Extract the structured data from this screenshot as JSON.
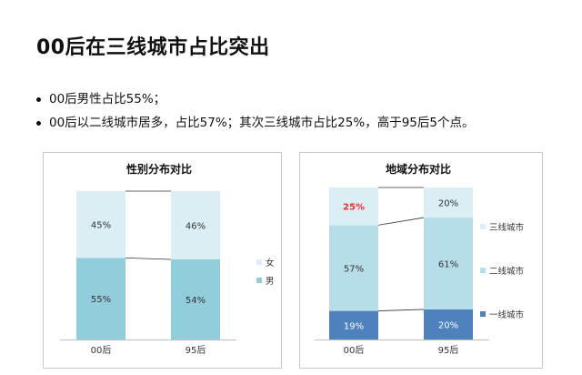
{
  "page": {
    "title": "00后在三线城市占比突出",
    "bullets": [
      "00后男性占比55%；",
      "00后以二线城市居多，占比57%；其次三线城市占比25%，高于95后5个点。"
    ]
  },
  "chart_data": [
    {
      "type": "bar",
      "stacked": true,
      "percent": true,
      "title": "性别分布对比",
      "categories": [
        "00后",
        "95后"
      ],
      "series": [
        {
          "name": "男",
          "values": [
            55,
            54
          ],
          "labels": [
            "55%",
            "54%"
          ],
          "color": "#92cddc",
          "label_color": "#333333"
        },
        {
          "name": "女",
          "values": [
            45,
            46
          ],
          "labels": [
            "45%",
            "46%"
          ],
          "color": "#daeef3",
          "label_color": "#333333"
        }
      ],
      "legend": "right",
      "legend_order": [
        "女",
        "男"
      ],
      "ylim": [
        0,
        100
      ],
      "series_lines": true
    },
    {
      "type": "bar",
      "stacked": true,
      "percent": true,
      "title": "地域分布对比",
      "categories": [
        "00后",
        "95后"
      ],
      "series": [
        {
          "name": "一线城市",
          "values": [
            19,
            20
          ],
          "labels": [
            "19%",
            "20%"
          ],
          "color": "#4f81bd",
          "label_color": "#ffffff"
        },
        {
          "name": "二线城市",
          "values": [
            57,
            61
          ],
          "labels": [
            "57%",
            "61%"
          ],
          "color": "#b7dde8",
          "label_color": "#333333"
        },
        {
          "name": "三线城市",
          "values": [
            25,
            20
          ],
          "labels": [
            "25%",
            "20%"
          ],
          "color": "#daeef3",
          "label_color": "#333333",
          "highlight": {
            "index": 0,
            "color": "#e8312f"
          }
        }
      ],
      "legend": "right",
      "legend_order": [
        "三线城市",
        "二线城市",
        "一线城市"
      ],
      "ylim": [
        0,
        100
      ],
      "series_lines": true
    }
  ]
}
